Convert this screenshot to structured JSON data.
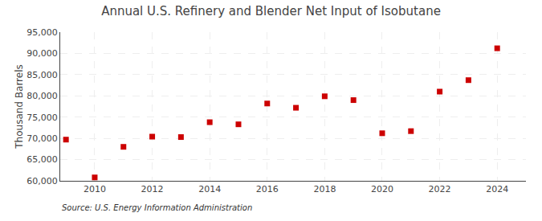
{
  "chart_data": {
    "type": "scatter",
    "title": "Annual U.S. Refinery and Blender Net Input of Isobutane",
    "ylabel": "Thousand Barrels",
    "annotations": [
      "Source: U.S. Energy Information Administration"
    ],
    "x": [
      2009,
      2010,
      2011,
      2012,
      2013,
      2014,
      2015,
      2016,
      2017,
      2018,
      2019,
      2020,
      2021,
      2022,
      2023,
      2024
    ],
    "values": [
      69700,
      60800,
      68000,
      70400,
      70300,
      73800,
      73300,
      78200,
      77200,
      79900,
      79000,
      71200,
      71700,
      81000,
      83700,
      91200
    ],
    "color": "#cc0000",
    "marker": "square",
    "xlim": [
      2008.8,
      2025.0
    ],
    "xticks": [
      2010,
      2012,
      2014,
      2016,
      2018,
      2020,
      2022,
      2024
    ],
    "ylim": [
      60000,
      95001
    ],
    "yticks": [
      {
        "value": 60000,
        "label": "60,000"
      },
      {
        "value": 65000,
        "label": "65,000"
      },
      {
        "value": 70000,
        "label": "70,000"
      },
      {
        "value": 75000,
        "label": "75,000"
      },
      {
        "value": 80000,
        "label": "80,000"
      },
      {
        "value": 85000,
        "label": "85,000"
      },
      {
        "value": 90000,
        "label": "90,000"
      },
      {
        "value": 95000,
        "label": "95,000"
      }
    ],
    "grid": true
  }
}
